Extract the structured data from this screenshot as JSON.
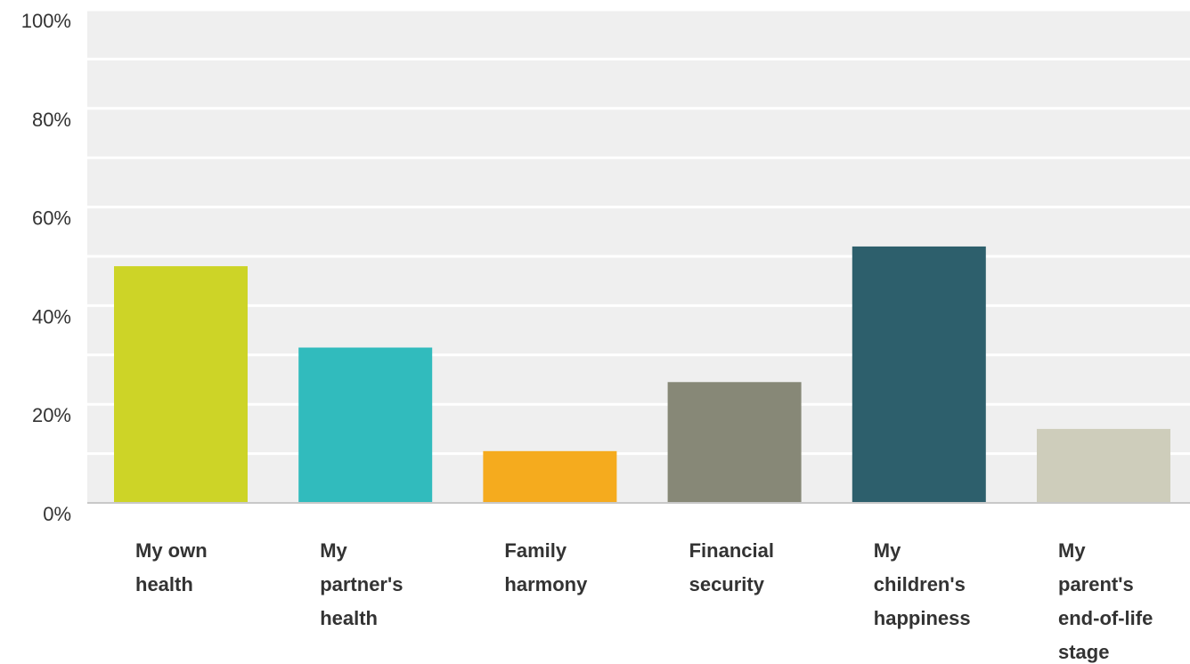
{
  "chart_data": {
    "type": "bar",
    "categories": [
      [
        "My own",
        "health"
      ],
      [
        "My",
        "partner's",
        "health"
      ],
      [
        "Family",
        "harmony"
      ],
      [
        "Financial",
        "security"
      ],
      [
        "My",
        "children's",
        "happiness"
      ],
      [
        "My",
        "parent's",
        "end-of-life",
        "stage"
      ]
    ],
    "values": [
      48,
      31.5,
      10.5,
      24.5,
      52,
      15
    ],
    "colors": [
      "#cdd427",
      "#31bbbd",
      "#f5ab1e",
      "#878877",
      "#2d5f6c",
      "#cecdbb"
    ],
    "y_ticks": [
      "0%",
      "20%",
      "40%",
      "60%",
      "80%",
      "100%"
    ],
    "ylim": [
      0,
      100
    ],
    "unit": "%",
    "grid": true,
    "plot_background": "#efefef",
    "gridline_color": "#ffffff"
  }
}
